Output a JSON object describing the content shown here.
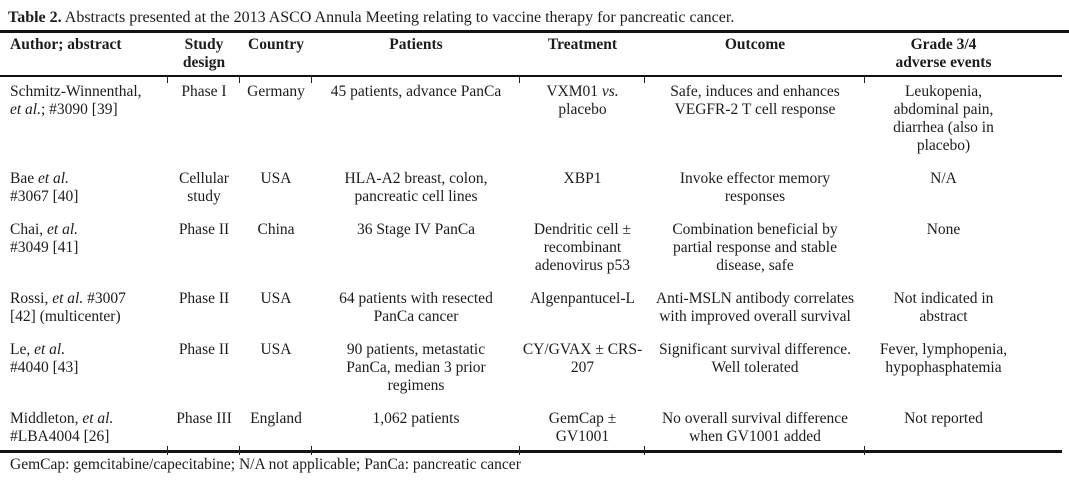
{
  "page": {
    "title_label": "Table 2.",
    "title_text": " Abstracts presented at the 2013 ASCO Annula Meeting relating to vaccine therapy for pancreatic cancer.",
    "footnote": "GemCap: gemcitabine/capecitabine; N/A not applicable; PanCa: pancreatic cancer"
  },
  "colors": {
    "text": "#1c1c1c",
    "rule": "#111111",
    "background": "#ffffff"
  },
  "table": {
    "columns": [
      "Author; abstract",
      "Study\ndesign",
      "Country",
      "Patients",
      "Treatment",
      "Outcome",
      "Grade 3/4\nadverse events"
    ],
    "rows": [
      {
        "cells": [
          [
            "Schmitz-Winnenthal,\n",
            {
              "i": "et al."
            },
            "; #3090 [39]"
          ],
          "Phase I",
          "Germany",
          "45 patients, advance PanCa",
          [
            "VXM01 ",
            {
              "i": "vs."
            },
            "\nplacebo"
          ],
          "Safe, induces and enhances\nVEGFR-2 T cell response",
          "Leukopenia,\nabdominal pain,\ndiarrhea (also in\nplacebo)"
        ]
      },
      {
        "cells": [
          [
            "Bae ",
            {
              "i": "et al."
            },
            "\n#3067 [40]"
          ],
          "Cellular\nstudy",
          "USA",
          "HLA-A2 breast, colon,\npancreatic cell lines",
          "XBP1",
          "Invoke effector memory\nresponses",
          "N/A"
        ]
      },
      {
        "cells": [
          [
            "Chai, ",
            {
              "i": "et al."
            },
            "\n#3049 [41]"
          ],
          "Phase II",
          "China",
          "36 Stage IV PanCa",
          "Dendritic cell ±\nrecombinant\nadenovirus p53",
          "Combination beneficial by\npartial response and stable\ndisease, safe",
          "None"
        ]
      },
      {
        "cells": [
          [
            "Rossi, ",
            {
              "i": "et al."
            },
            " #3007\n[42] (multicenter)"
          ],
          "Phase II",
          "USA",
          "64 patients with resected\nPanCa cancer",
          "Algenpantucel-L",
          "Anti-MSLN antibody correlates\nwith improved overall survival",
          "Not indicated in\nabstract"
        ]
      },
      {
        "cells": [
          [
            "Le, ",
            {
              "i": "et al."
            },
            "\n#4040 [43]"
          ],
          "Phase II",
          "USA",
          "90 patients, metastatic\nPanCa, median 3 prior\nregimens",
          "CY/GVAX ± CRS-\n207",
          "Significant survival difference.\nWell tolerated",
          "Fever, lymphopenia,\nhypophasphatemia"
        ]
      },
      {
        "cells": [
          [
            "Middleton, ",
            {
              "i": "et al."
            },
            "\n#LBA4004 [26]"
          ],
          "Phase III",
          "England",
          "1,062 patients",
          "GemCap ±\nGV1001",
          "No overall survival difference\nwhen GV1001 added",
          "Not reported"
        ]
      }
    ]
  }
}
